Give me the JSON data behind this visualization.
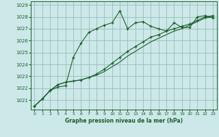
{
  "title": "Graphe pression niveau de la mer (hPa)",
  "background_color": "#cce8e8",
  "grid_color": "#99bbbb",
  "line_color": "#1a5c28",
  "xlim": [
    -0.5,
    23.5
  ],
  "ylim": [
    1020.2,
    1029.3
  ],
  "yticks": [
    1021,
    1022,
    1023,
    1024,
    1025,
    1026,
    1027,
    1028,
    1029
  ],
  "xticks": [
    0,
    1,
    2,
    3,
    4,
    5,
    6,
    7,
    8,
    9,
    10,
    11,
    12,
    13,
    14,
    15,
    16,
    17,
    18,
    19,
    20,
    21,
    22,
    23
  ],
  "series1_y": [
    1020.5,
    1021.1,
    1021.8,
    1022.1,
    1022.2,
    1024.6,
    1025.8,
    1026.7,
    1027.0,
    1027.3,
    1027.5,
    1028.5,
    1027.0,
    1027.5,
    1027.6,
    1027.2,
    1027.0,
    1026.8,
    1027.5,
    1027.1,
    1027.1,
    1028.0,
    1028.1,
    1027.9
  ],
  "series2_y": [
    1020.5,
    1021.1,
    1021.8,
    1022.3,
    1022.5,
    1022.6,
    1022.7,
    1022.9,
    1023.2,
    1023.6,
    1024.1,
    1024.6,
    1025.1,
    1025.5,
    1025.9,
    1026.3,
    1026.5,
    1026.8,
    1027.0,
    1027.2,
    1027.4,
    1027.7,
    1028.0,
    1028.1
  ],
  "series3_y": [
    1020.5,
    1021.1,
    1021.8,
    1022.3,
    1022.5,
    1022.6,
    1022.7,
    1022.9,
    1023.1,
    1023.4,
    1023.8,
    1024.2,
    1024.7,
    1025.1,
    1025.5,
    1025.9,
    1026.2,
    1026.5,
    1026.8,
    1027.0,
    1027.3,
    1027.6,
    1027.9,
    1028.0
  ]
}
